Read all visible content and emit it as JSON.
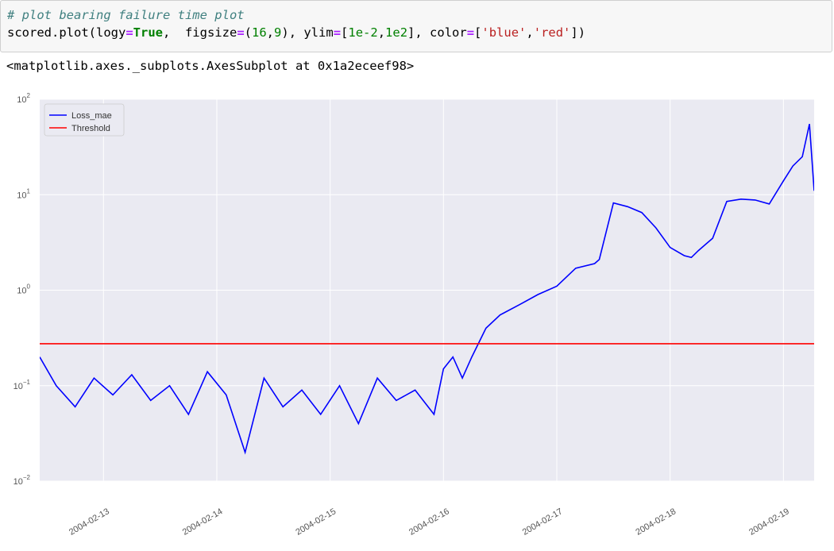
{
  "cell": {
    "comment": "# plot bearing failure time plot",
    "code": {
      "p1": "scored.plot(logy",
      "eq1": "=",
      "kw_true": "True",
      "p2": ",  figsize",
      "eq2": "=",
      "p3": "(",
      "n16": "16",
      "p4": ",",
      "n9": "9",
      "p5": "), ylim",
      "eq3": "=",
      "p6": "[",
      "n_lo": "1e-2",
      "p7": ",",
      "n_hi": "1e2",
      "p8": "], color",
      "eq4": "=",
      "p9": "[",
      "s_blue": "'blue'",
      "p10": ",",
      "s_red": "'red'",
      "p11": "])"
    }
  },
  "output": {
    "text": "<matplotlib.axes._subplots.AxesSubplot at 0x1a2eceef98>"
  },
  "chart_data": {
    "type": "line",
    "yscale": "log",
    "ylim": [
      0.01,
      100
    ],
    "xlim": [
      "2004-02-12 10:30",
      "2004-02-19 06:30"
    ],
    "y_tick_labels": [
      {
        "base": "10",
        "exp": "−2",
        "value": 0.01
      },
      {
        "base": "10",
        "exp": "−1",
        "value": 0.1
      },
      {
        "base": "10",
        "exp": "0",
        "value": 1
      },
      {
        "base": "10",
        "exp": "1",
        "value": 10
      },
      {
        "base": "10",
        "exp": "2",
        "value": 100
      }
    ],
    "x_tick_labels": [
      "2004-02-13",
      "2004-02-14",
      "2004-02-15",
      "2004-02-16",
      "2004-02-17",
      "2004-02-18",
      "2004-02-19"
    ],
    "grid": true,
    "legend": {
      "placement": "upper-left"
    },
    "series": [
      {
        "name": "Loss_mae",
        "color": "#0000ff",
        "x": [
          "2004-02-12 10:30",
          "2004-02-12 14:00",
          "2004-02-12 18:00",
          "2004-02-12 22:00",
          "2004-02-13 02:00",
          "2004-02-13 06:00",
          "2004-02-13 10:00",
          "2004-02-13 14:00",
          "2004-02-13 18:00",
          "2004-02-13 22:00",
          "2004-02-14 02:00",
          "2004-02-14 06:00",
          "2004-02-14 10:00",
          "2004-02-14 14:00",
          "2004-02-14 18:00",
          "2004-02-14 22:00",
          "2004-02-15 02:00",
          "2004-02-15 06:00",
          "2004-02-15 10:00",
          "2004-02-15 14:00",
          "2004-02-15 18:00",
          "2004-02-15 22:00",
          "2004-02-16 00:00",
          "2004-02-16 02:00",
          "2004-02-16 04:00",
          "2004-02-16 06:00",
          "2004-02-16 09:00",
          "2004-02-16 12:00",
          "2004-02-16 16:00",
          "2004-02-16 20:00",
          "2004-02-17 00:00",
          "2004-02-17 04:00",
          "2004-02-17 08:00",
          "2004-02-17 09:00",
          "2004-02-17 12:00",
          "2004-02-17 15:00",
          "2004-02-17 18:00",
          "2004-02-17 21:00",
          "2004-02-18 00:00",
          "2004-02-18 03:00",
          "2004-02-18 04:30",
          "2004-02-18 06:00",
          "2004-02-18 09:00",
          "2004-02-18 12:00",
          "2004-02-18 15:00",
          "2004-02-18 18:00",
          "2004-02-18 21:00",
          "2004-02-19 00:00",
          "2004-02-19 02:00",
          "2004-02-19 04:00",
          "2004-02-19 05:30",
          "2004-02-19 06:30"
        ],
        "y": [
          0.2,
          0.1,
          0.06,
          0.12,
          0.08,
          0.13,
          0.07,
          0.1,
          0.05,
          0.14,
          0.08,
          0.02,
          0.12,
          0.06,
          0.09,
          0.05,
          0.1,
          0.04,
          0.12,
          0.07,
          0.09,
          0.05,
          0.15,
          0.2,
          0.12,
          0.2,
          0.4,
          0.55,
          0.7,
          0.9,
          1.1,
          1.7,
          1.9,
          2.1,
          8.2,
          7.5,
          6.5,
          4.5,
          2.8,
          2.3,
          2.2,
          2.6,
          3.5,
          8.5,
          9.0,
          8.8,
          8.0,
          14,
          20,
          25,
          55,
          11
        ]
      },
      {
        "name": "Threshold",
        "color": "#ff0000",
        "x": [
          "2004-02-12 10:30",
          "2004-02-19 06:30"
        ],
        "y": [
          0.275,
          0.275
        ]
      }
    ]
  }
}
